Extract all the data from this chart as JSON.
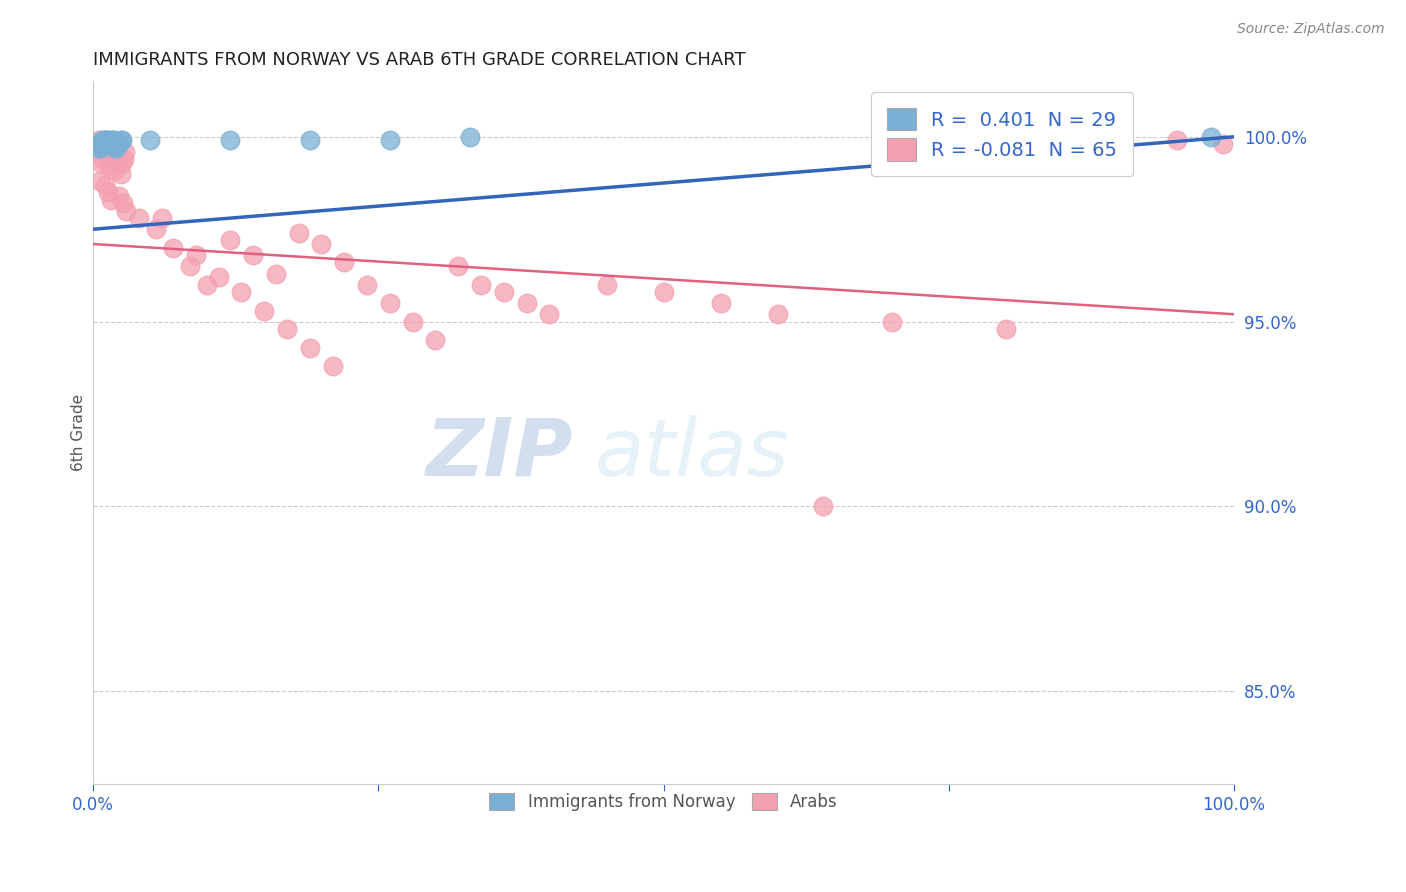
{
  "title": "IMMIGRANTS FROM NORWAY VS ARAB 6TH GRADE CORRELATION CHART",
  "source": "Source: ZipAtlas.com",
  "ylabel": "6th Grade",
  "yticks": [
    0.85,
    0.9,
    0.95,
    1.0
  ],
  "ytick_labels": [
    "85.0%",
    "90.0%",
    "95.0%",
    "100.0%"
  ],
  "xtick_positions": [
    0.0,
    0.25,
    0.5,
    0.75,
    1.0
  ],
  "xtick_labels": [
    "0.0%",
    "",
    "",
    "",
    "100.0%"
  ],
  "xlim": [
    0.0,
    1.0
  ],
  "ylim": [
    0.825,
    1.015
  ],
  "norway_R": 0.401,
  "norway_N": 29,
  "arab_R": -0.081,
  "arab_N": 65,
  "norway_color": "#7BAFD4",
  "norway_edge_color": "#5588BB",
  "arab_color": "#F4A0B0",
  "arab_edge_color": "#E06080",
  "norway_trendline_color": "#3366BB",
  "arab_trendline_color": "#E06080",
  "background_color": "#FFFFFF",
  "grid_color": "#CCCCCC",
  "norway_x": [
    0.005,
    0.008,
    0.01,
    0.012,
    0.015,
    0.018,
    0.02,
    0.022,
    0.025,
    0.005,
    0.007,
    0.009,
    0.011,
    0.013,
    0.016,
    0.019,
    0.021,
    0.024,
    0.006,
    0.01,
    0.014,
    0.017,
    0.023,
    0.05,
    0.12,
    0.19,
    0.26,
    0.33,
    0.98
  ],
  "norway_y": [
    0.997,
    0.999,
    0.998,
    0.999,
    0.998,
    0.999,
    0.997,
    0.998,
    0.999,
    0.998,
    0.997,
    0.998,
    0.999,
    0.998,
    0.999,
    0.997,
    0.998,
    0.999,
    0.998,
    0.999,
    0.998,
    0.999,
    0.998,
    0.999,
    0.999,
    0.999,
    0.999,
    1.0,
    1.0
  ],
  "arab_x": [
    0.005,
    0.008,
    0.01,
    0.012,
    0.015,
    0.018,
    0.02,
    0.022,
    0.025,
    0.028,
    0.005,
    0.007,
    0.009,
    0.011,
    0.014,
    0.017,
    0.019,
    0.021,
    0.024,
    0.027,
    0.006,
    0.01,
    0.013,
    0.016,
    0.023,
    0.026,
    0.029,
    0.04,
    0.055,
    0.07,
    0.085,
    0.1,
    0.12,
    0.14,
    0.16,
    0.18,
    0.2,
    0.22,
    0.24,
    0.26,
    0.28,
    0.3,
    0.06,
    0.09,
    0.11,
    0.13,
    0.15,
    0.17,
    0.19,
    0.21,
    0.32,
    0.34,
    0.36,
    0.38,
    0.4,
    0.45,
    0.5,
    0.55,
    0.6,
    0.7,
    0.8,
    0.9,
    0.95,
    0.99,
    0.64
  ],
  "arab_y": [
    0.999,
    0.998,
    0.997,
    0.999,
    0.996,
    0.995,
    0.997,
    0.994,
    0.993,
    0.996,
    0.998,
    0.993,
    0.994,
    0.996,
    0.992,
    0.995,
    0.991,
    0.993,
    0.99,
    0.994,
    0.988,
    0.987,
    0.985,
    0.983,
    0.984,
    0.982,
    0.98,
    0.978,
    0.975,
    0.97,
    0.965,
    0.96,
    0.972,
    0.968,
    0.963,
    0.974,
    0.971,
    0.966,
    0.96,
    0.955,
    0.95,
    0.945,
    0.978,
    0.968,
    0.962,
    0.958,
    0.953,
    0.948,
    0.943,
    0.938,
    0.965,
    0.96,
    0.958,
    0.955,
    0.952,
    0.96,
    0.958,
    0.955,
    0.952,
    0.95,
    0.948,
    0.997,
    0.999,
    0.998,
    0.9
  ],
  "arab_trendline_x0": 0.0,
  "arab_trendline_y0": 0.971,
  "arab_trendline_x1": 1.0,
  "arab_trendline_y1": 0.952,
  "norway_trendline_x0": 0.0,
  "norway_trendline_y0": 0.975,
  "norway_trendline_x1": 1.0,
  "norway_trendline_y1": 1.0
}
